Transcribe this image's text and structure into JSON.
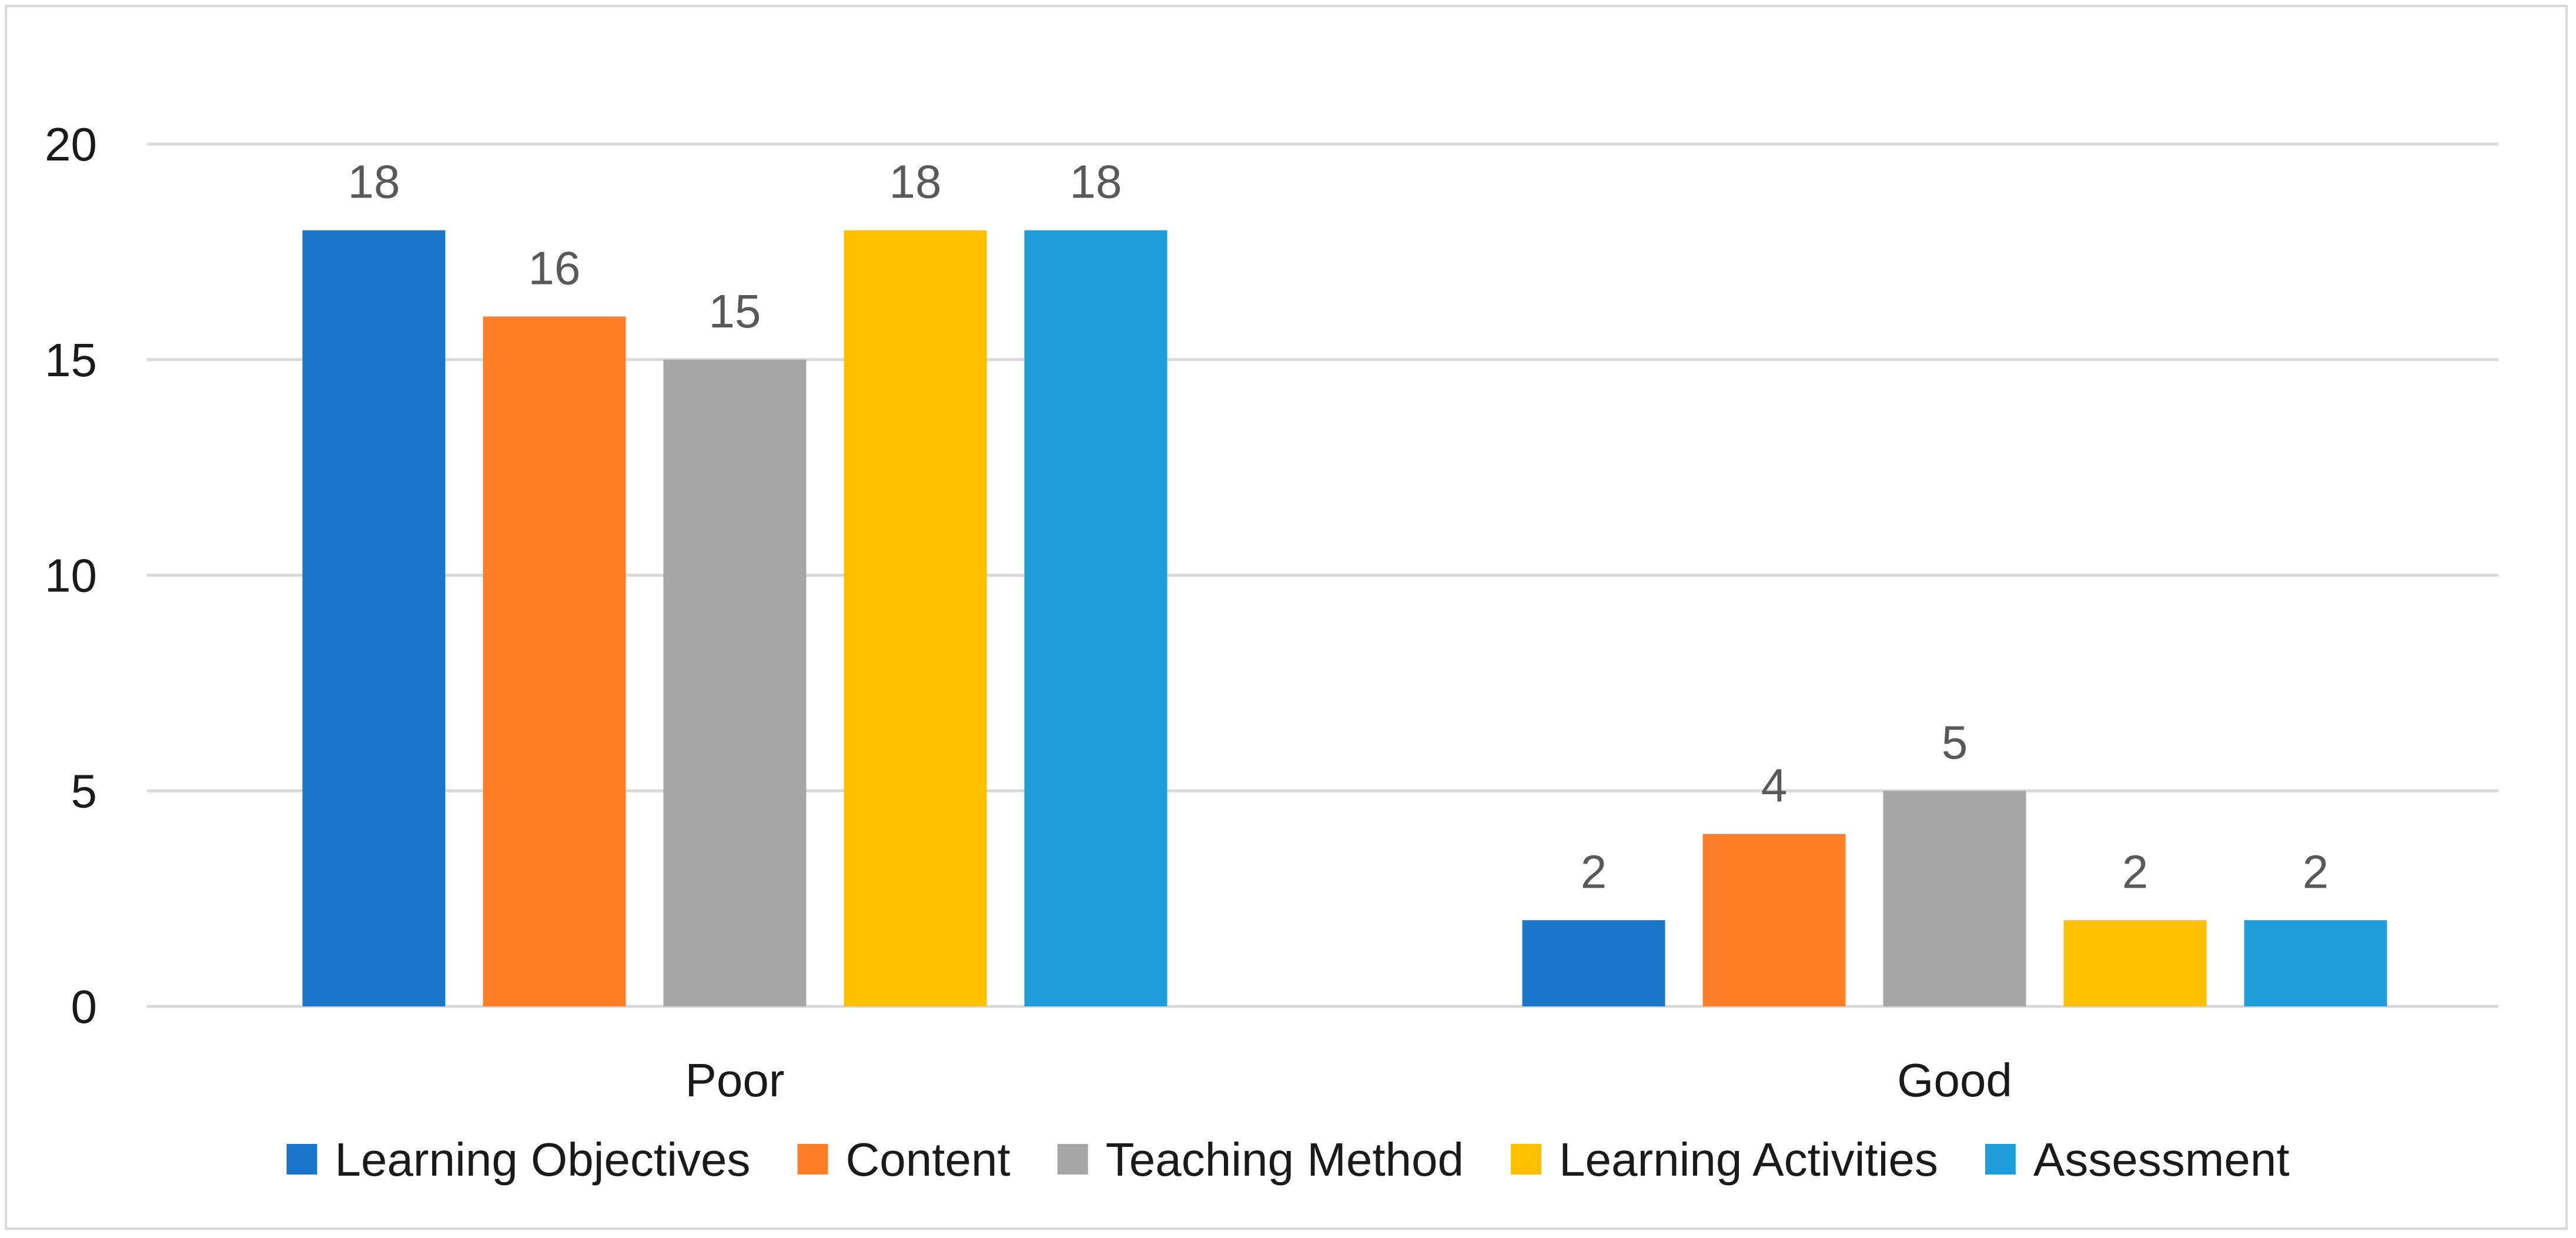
{
  "chart_data": {
    "type": "bar",
    "categories": [
      "Poor",
      "Good"
    ],
    "series": [
      {
        "name": "Learning Objectives",
        "values": [
          18,
          2
        ],
        "color": "#1b75c9"
      },
      {
        "name": "Content",
        "values": [
          16,
          4
        ],
        "color": "#fe7f28"
      },
      {
        "name": "Teaching Method",
        "values": [
          15,
          5
        ],
        "color": "#a6a6a6"
      },
      {
        "name": "Learning Activities",
        "values": [
          18,
          2
        ],
        "color": "#ffc000"
      },
      {
        "name": "Assessment",
        "values": [
          18,
          2
        ],
        "color": "#1f9dd9"
      }
    ],
    "yticks": [
      "0",
      "5",
      "10",
      "15",
      "20"
    ],
    "ylim": [
      0,
      20
    ],
    "title": "",
    "xlabel": "",
    "ylabel": "",
    "grid": true,
    "gridline_color": "#d9d9d9",
    "legend_position": "bottom",
    "data_labels": true
  }
}
